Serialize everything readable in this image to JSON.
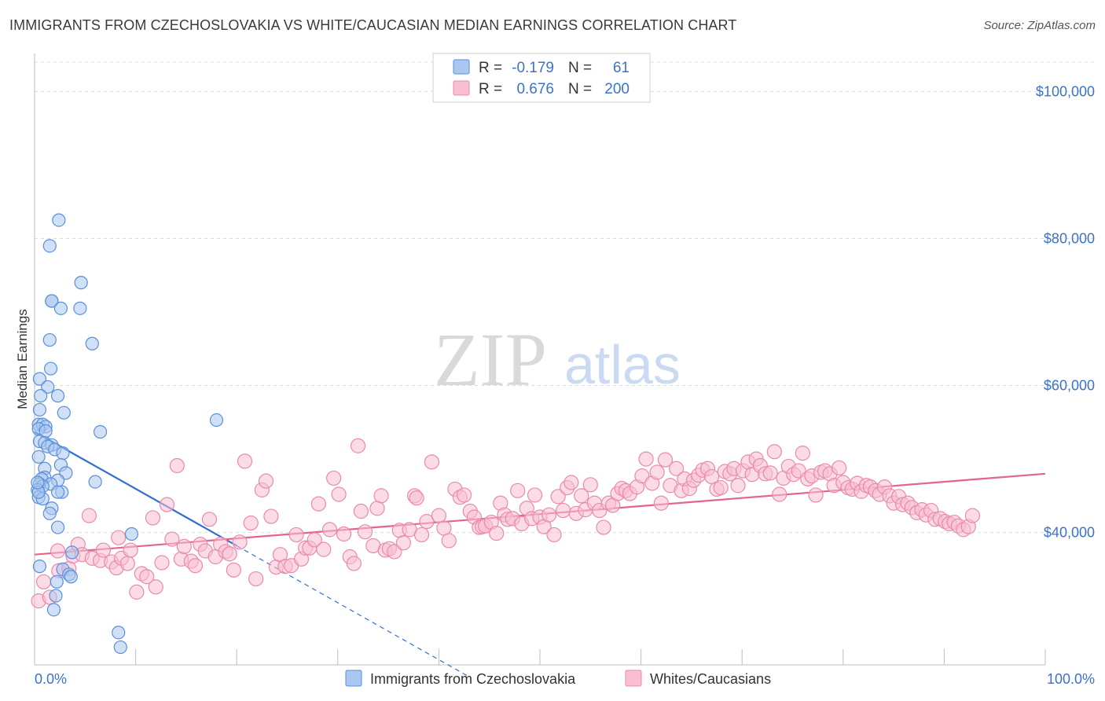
{
  "title": "IMMIGRANTS FROM CZECHOSLOVAKIA VS WHITE/CAUCASIAN MEDIAN EARNINGS CORRELATION CHART",
  "source": "Source: ZipAtlas.com",
  "watermark": {
    "zip": "ZIP",
    "atlas": "atlas"
  },
  "legend_stats": [
    {
      "r_label": "R =",
      "r_value": "-0.179",
      "n_label": "N =",
      "n_value": "61",
      "color": "#8ab4f0"
    },
    {
      "r_label": "R =",
      "r_value": "0.676",
      "n_label": "N =",
      "n_value": "200",
      "color": "#f4a6bf"
    }
  ],
  "colors": {
    "blue_fill": "#a9c7f0",
    "blue_stroke": "#5a8fd8",
    "blue_line": "#2e6fd1",
    "pink_fill": "#f7bfd1",
    "pink_stroke": "#e98aa9",
    "pink_line": "#e3648f",
    "tick": "#3b73c8",
    "grid": "#dcdcdc"
  },
  "chart_data": {
    "type": "scatter",
    "xlabel": "",
    "ylabel": "Median Earnings",
    "xlim": [
      0,
      100
    ],
    "ylim": [
      22000,
      104000
    ],
    "x_tick_labels": [
      {
        "value": 0,
        "label": "0.0%"
      },
      {
        "value": 100,
        "label": "100.0%"
      }
    ],
    "y_tick_labels": [
      {
        "value": 40000,
        "label": "$40,000"
      },
      {
        "value": 60000,
        "label": "$60,000"
      },
      {
        "value": 80000,
        "label": "$80,000"
      },
      {
        "value": 100000,
        "label": "$100,000"
      }
    ],
    "series": [
      {
        "name": "Immigrants from Czechoslovakia",
        "color": "#a9c7f0",
        "trend": {
          "x1": 0,
          "y1": 53700,
          "x2": 20,
          "y2": 38200,
          "dash_to_x": 43
        },
        "points": [
          [
            2.4,
            82500
          ],
          [
            1.5,
            79000
          ],
          [
            4.6,
            74000
          ],
          [
            1.7,
            71500
          ],
          [
            1.7,
            71500
          ],
          [
            2.6,
            70500
          ],
          [
            4.5,
            70500
          ],
          [
            1.5,
            66200
          ],
          [
            5.7,
            65700
          ],
          [
            1.6,
            62300
          ],
          [
            0.5,
            60900
          ],
          [
            1.3,
            59800
          ],
          [
            0.6,
            58600
          ],
          [
            2.3,
            58600
          ],
          [
            0.5,
            56700
          ],
          [
            2.9,
            56300
          ],
          [
            18.0,
            55300
          ],
          [
            0.4,
            54700
          ],
          [
            0.8,
            54700
          ],
          [
            1.1,
            54400
          ],
          [
            0.4,
            54100
          ],
          [
            1.1,
            53800
          ],
          [
            6.5,
            53700
          ],
          [
            0.5,
            52400
          ],
          [
            1.0,
            52200
          ],
          [
            1.7,
            51900
          ],
          [
            1.3,
            51700
          ],
          [
            2.0,
            51300
          ],
          [
            2.8,
            50800
          ],
          [
            0.4,
            50300
          ],
          [
            2.6,
            49200
          ],
          [
            1.0,
            48700
          ],
          [
            3.1,
            48100
          ],
          [
            1.0,
            47500
          ],
          [
            0.7,
            47300
          ],
          [
            2.3,
            47100
          ],
          [
            6.0,
            46900
          ],
          [
            0.5,
            46600
          ],
          [
            1.6,
            46600
          ],
          [
            0.8,
            46300
          ],
          [
            0.3,
            45800
          ],
          [
            2.7,
            45500
          ],
          [
            2.3,
            45500
          ],
          [
            0.4,
            44800
          ],
          [
            0.8,
            44600
          ],
          [
            1.7,
            43300
          ],
          [
            1.5,
            42600
          ],
          [
            2.3,
            40700
          ],
          [
            9.6,
            39800
          ],
          [
            3.7,
            37300
          ],
          [
            0.5,
            35400
          ],
          [
            2.8,
            35000
          ],
          [
            3.4,
            34300
          ],
          [
            3.6,
            34000
          ],
          [
            2.2,
            33300
          ],
          [
            2.1,
            31400
          ],
          [
            1.9,
            29500
          ],
          [
            8.3,
            26400
          ],
          [
            8.5,
            24400
          ],
          [
            0.4,
            45500
          ],
          [
            0.3,
            46800
          ]
        ]
      },
      {
        "name": "Whites/Caucasians",
        "color": "#f7bfd1",
        "trend": {
          "x1": 0,
          "y1": 37000,
          "x2": 100,
          "y2": 48000
        },
        "points": [
          [
            0.4,
            30700
          ],
          [
            0.9,
            33300
          ],
          [
            1.5,
            31200
          ],
          [
            2.3,
            37500
          ],
          [
            2.4,
            34800
          ],
          [
            3.4,
            35100
          ],
          [
            3.8,
            36800
          ],
          [
            4.3,
            38400
          ],
          [
            4.7,
            37000
          ],
          [
            5.4,
            42300
          ],
          [
            5.7,
            36500
          ],
          [
            6.5,
            36200
          ],
          [
            6.8,
            37600
          ],
          [
            7.6,
            36000
          ],
          [
            8.1,
            35200
          ],
          [
            8.3,
            39300
          ],
          [
            8.6,
            36500
          ],
          [
            9.2,
            35800
          ],
          [
            9.5,
            37600
          ],
          [
            10.1,
            31900
          ],
          [
            10.6,
            34400
          ],
          [
            11.1,
            34000
          ],
          [
            11.7,
            42000
          ],
          [
            12.0,
            32600
          ],
          [
            12.6,
            35900
          ],
          [
            13.1,
            43800
          ],
          [
            13.6,
            39100
          ],
          [
            14.1,
            49100
          ],
          [
            14.5,
            36400
          ],
          [
            14.8,
            38100
          ],
          [
            15.5,
            36100
          ],
          [
            15.9,
            35500
          ],
          [
            16.4,
            38400
          ],
          [
            16.9,
            37500
          ],
          [
            17.3,
            41800
          ],
          [
            17.9,
            36700
          ],
          [
            18.4,
            38400
          ],
          [
            18.9,
            37400
          ],
          [
            19.3,
            37100
          ],
          [
            19.7,
            34900
          ],
          [
            20.3,
            38700
          ],
          [
            20.8,
            49700
          ],
          [
            21.4,
            41300
          ],
          [
            21.9,
            33700
          ],
          [
            22.5,
            45800
          ],
          [
            22.9,
            47000
          ],
          [
            23.4,
            42200
          ],
          [
            23.9,
            35300
          ],
          [
            24.3,
            37000
          ],
          [
            24.8,
            35400
          ],
          [
            25.4,
            35500
          ],
          [
            25.9,
            39700
          ],
          [
            26.4,
            36400
          ],
          [
            26.8,
            37900
          ],
          [
            27.2,
            37900
          ],
          [
            27.7,
            39000
          ],
          [
            28.1,
            43900
          ],
          [
            28.6,
            37700
          ],
          [
            29.2,
            40400
          ],
          [
            29.6,
            47400
          ],
          [
            30.1,
            45200
          ],
          [
            30.6,
            39800
          ],
          [
            31.2,
            36700
          ],
          [
            31.6,
            35800
          ],
          [
            32.0,
            51800
          ],
          [
            32.3,
            42900
          ],
          [
            32.7,
            40100
          ],
          [
            33.5,
            38200
          ],
          [
            33.9,
            43300
          ],
          [
            34.3,
            45000
          ],
          [
            34.7,
            37600
          ],
          [
            35.1,
            37800
          ],
          [
            35.6,
            37400
          ],
          [
            36.1,
            40300
          ],
          [
            36.5,
            38600
          ],
          [
            37.1,
            40400
          ],
          [
            37.6,
            45000
          ],
          [
            37.8,
            44700
          ],
          [
            38.3,
            39700
          ],
          [
            38.8,
            41500
          ],
          [
            39.3,
            49600
          ],
          [
            40.0,
            42300
          ],
          [
            40.5,
            40600
          ],
          [
            41.0,
            38900
          ],
          [
            41.6,
            45900
          ],
          [
            42.1,
            44800
          ],
          [
            42.5,
            45100
          ],
          [
            43.1,
            42900
          ],
          [
            43.5,
            42100
          ],
          [
            44.0,
            40700
          ],
          [
            44.3,
            40800
          ],
          [
            44.6,
            40900
          ],
          [
            45.2,
            41400
          ],
          [
            45.7,
            39900
          ],
          [
            46.1,
            44000
          ],
          [
            46.5,
            42400
          ],
          [
            46.8,
            41800
          ],
          [
            47.3,
            41900
          ],
          [
            47.8,
            45700
          ],
          [
            48.2,
            41200
          ],
          [
            48.7,
            43300
          ],
          [
            49.2,
            41900
          ],
          [
            49.5,
            45100
          ],
          [
            50.0,
            42100
          ],
          [
            50.4,
            40800
          ],
          [
            50.9,
            42400
          ],
          [
            51.4,
            39700
          ],
          [
            51.8,
            44900
          ],
          [
            52.3,
            43000
          ],
          [
            52.7,
            46100
          ],
          [
            53.1,
            46800
          ],
          [
            53.6,
            42600
          ],
          [
            54.1,
            45000
          ],
          [
            54.5,
            43100
          ],
          [
            55.0,
            46500
          ],
          [
            55.4,
            44000
          ],
          [
            55.9,
            43000
          ],
          [
            56.3,
            40700
          ],
          [
            56.8,
            44000
          ],
          [
            57.2,
            43700
          ],
          [
            57.7,
            45300
          ],
          [
            58.1,
            46000
          ],
          [
            58.5,
            45700
          ],
          [
            58.9,
            45300
          ],
          [
            59.6,
            46200
          ],
          [
            60.1,
            47700
          ],
          [
            60.5,
            50000
          ],
          [
            61.1,
            46700
          ],
          [
            61.6,
            48200
          ],
          [
            62.0,
            44000
          ],
          [
            62.4,
            49900
          ],
          [
            62.9,
            46400
          ],
          [
            63.5,
            48700
          ],
          [
            64.0,
            45700
          ],
          [
            64.3,
            47300
          ],
          [
            64.8,
            46000
          ],
          [
            65.2,
            47100
          ],
          [
            65.7,
            47800
          ],
          [
            66.1,
            48500
          ],
          [
            66.6,
            48700
          ],
          [
            67.0,
            47600
          ],
          [
            67.5,
            45900
          ],
          [
            67.9,
            46100
          ],
          [
            68.3,
            48300
          ],
          [
            68.8,
            48000
          ],
          [
            69.2,
            48700
          ],
          [
            69.6,
            46400
          ],
          [
            70.1,
            48400
          ],
          [
            70.6,
            49600
          ],
          [
            71.0,
            47900
          ],
          [
            71.4,
            50000
          ],
          [
            71.8,
            49100
          ],
          [
            72.3,
            48000
          ],
          [
            72.8,
            48100
          ],
          [
            73.2,
            51000
          ],
          [
            73.7,
            45200
          ],
          [
            74.1,
            47400
          ],
          [
            74.6,
            49000
          ],
          [
            75.1,
            47900
          ],
          [
            75.6,
            48400
          ],
          [
            76.0,
            50800
          ],
          [
            76.5,
            47300
          ],
          [
            76.9,
            47700
          ],
          [
            77.3,
            45100
          ],
          [
            77.8,
            48200
          ],
          [
            78.2,
            48400
          ],
          [
            78.7,
            48000
          ],
          [
            79.1,
            46400
          ],
          [
            79.6,
            48800
          ],
          [
            80.0,
            46800
          ],
          [
            80.5,
            46100
          ],
          [
            80.9,
            45900
          ],
          [
            81.4,
            46700
          ],
          [
            81.8,
            45600
          ],
          [
            82.3,
            46400
          ],
          [
            82.7,
            46200
          ],
          [
            83.2,
            45700
          ],
          [
            83.6,
            45200
          ],
          [
            84.1,
            46200
          ],
          [
            84.6,
            45000
          ],
          [
            85.0,
            44000
          ],
          [
            85.5,
            44900
          ],
          [
            85.9,
            43800
          ],
          [
            86.4,
            44000
          ],
          [
            86.8,
            43400
          ],
          [
            87.3,
            42700
          ],
          [
            87.8,
            43100
          ],
          [
            88.2,
            42400
          ],
          [
            88.7,
            43000
          ],
          [
            89.1,
            41800
          ],
          [
            89.6,
            41900
          ],
          [
            90.1,
            41500
          ],
          [
            90.5,
            41200
          ],
          [
            91.0,
            41400
          ],
          [
            91.4,
            40900
          ],
          [
            91.9,
            40400
          ],
          [
            92.4,
            40800
          ],
          [
            92.8,
            42300
          ]
        ]
      }
    ]
  },
  "bottom_legend": [
    {
      "label": "Immigrants from Czechoslovakia"
    },
    {
      "label": "Whites/Caucasians"
    }
  ]
}
